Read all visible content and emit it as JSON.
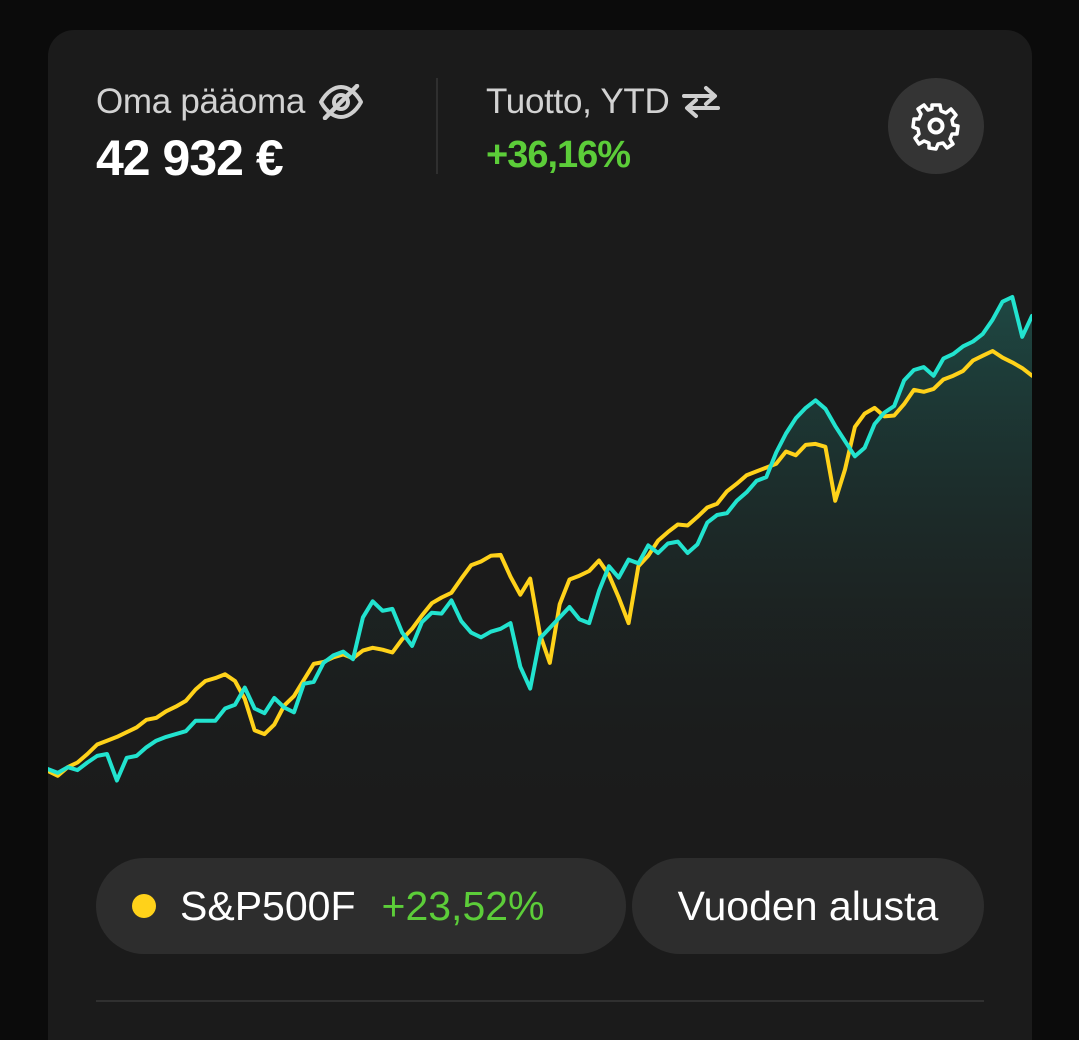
{
  "equity": {
    "label": "Oma pääoma",
    "value": "42 932 €",
    "hide_icon": "eye-off-icon"
  },
  "ytd_return": {
    "label": "Tuotto, YTD",
    "value": "+36,16%",
    "swap_icon": "swap-arrows-icon"
  },
  "settings": {
    "icon": "gear-icon"
  },
  "benchmark": {
    "name": "S&P500F",
    "change": "+23,52%",
    "dot_color": "#ffd21a"
  },
  "period": {
    "label": "Vuoden alusta"
  },
  "colors": {
    "portfolio": "#22e3cf",
    "benchmark": "#ffd21a",
    "positive": "#5ccd39",
    "card": "#1b1b1b"
  },
  "chart_data": {
    "type": "line",
    "x": [
      0,
      1,
      2,
      3,
      4,
      5,
      6,
      7,
      8,
      9,
      10,
      11,
      12,
      13,
      14,
      15,
      16,
      17,
      18,
      19,
      20,
      21,
      22,
      23,
      24,
      25,
      26,
      27,
      28,
      29,
      30,
      31,
      32,
      33,
      34,
      35,
      36,
      37,
      38,
      39,
      40,
      41,
      42,
      43,
      44,
      45,
      46,
      47,
      48,
      49,
      50,
      51,
      52,
      53,
      54,
      55,
      56,
      57,
      58,
      59,
      60,
      61,
      62,
      63,
      64,
      65,
      66,
      67,
      68,
      69,
      70,
      71,
      72,
      73,
      74,
      75,
      76,
      77,
      78,
      79,
      80,
      81,
      82,
      83,
      84,
      85,
      86,
      87,
      88,
      89,
      90,
      91,
      92,
      93,
      94,
      95,
      96,
      97,
      98,
      99,
      100
    ],
    "series": [
      {
        "values": [
          0.2,
          -0.2,
          0.4,
          0.1,
          0.9,
          1.6,
          1.8,
          -1.0,
          1.4,
          1.6,
          2.5,
          3.2,
          3.6,
          3.9,
          4.2,
          5.3,
          5.3,
          5.3,
          6.6,
          7.0,
          8.8,
          6.6,
          6.1,
          7.7,
          6.7,
          6.2,
          9.2,
          9.4,
          11.4,
          12.2,
          12.6,
          11.8,
          16.2,
          17.9,
          16.9,
          17.1,
          14.6,
          13.2,
          15.7,
          16.7,
          16.6,
          18.0,
          15.8,
          14.6,
          14.1,
          14.7,
          15.0,
          15.6,
          11.0,
          8.7,
          14.0,
          15.1,
          16.2,
          17.3,
          16.0,
          15.6,
          19.0,
          21.6,
          20.4,
          22.3,
          21.9,
          23.8,
          23.0,
          24.0,
          24.2,
          23.0,
          23.9,
          26.2,
          27.0,
          27.2,
          28.5,
          29.4,
          30.6,
          31.0,
          33.6,
          35.6,
          37.2,
          38.3,
          39.1,
          38.2,
          36.4,
          34.8,
          33.2,
          34.1,
          36.6,
          37.8,
          38.5,
          41.2,
          42.3,
          42.6,
          41.7,
          43.5,
          44.0,
          44.8,
          45.3,
          46.1,
          47.6,
          49.5,
          50.0,
          45.8,
          48.0
        ]
      },
      {
        "values": [
          0.0,
          -0.5,
          0.4,
          0.9,
          1.8,
          2.8,
          3.2,
          3.6,
          4.1,
          4.6,
          5.4,
          5.6,
          6.3,
          6.8,
          7.4,
          8.6,
          9.5,
          9.8,
          10.2,
          9.5,
          7.6,
          4.3,
          3.9,
          4.9,
          6.9,
          7.9,
          9.6,
          11.3,
          11.5,
          12.0,
          12.3,
          11.9,
          12.7,
          13.0,
          12.8,
          12.5,
          13.9,
          15.0,
          16.4,
          17.7,
          18.3,
          18.8,
          20.3,
          21.7,
          22.1,
          22.7,
          22.8,
          20.5,
          18.6,
          20.3,
          14.4,
          11.4,
          17.6,
          20.2,
          20.6,
          21.1,
          22.2,
          20.7,
          18.3,
          15.6,
          21.6,
          22.7,
          24.3,
          25.2,
          26.0,
          25.9,
          26.8,
          27.8,
          28.2,
          29.5,
          30.3,
          31.2,
          31.6,
          32.0,
          32.4,
          33.7,
          33.3,
          34.4,
          34.5,
          34.2,
          28.5,
          31.8,
          36.3,
          37.7,
          38.3,
          37.4,
          37.5,
          38.7,
          40.2,
          40.0,
          40.3,
          41.3,
          41.7,
          42.2,
          43.3,
          43.8,
          44.3,
          43.6,
          43.1,
          42.5,
          41.7
        ]
      }
    ],
    "ylim": [
      -2,
      52
    ],
    "grid": false,
    "legend": "none"
  }
}
